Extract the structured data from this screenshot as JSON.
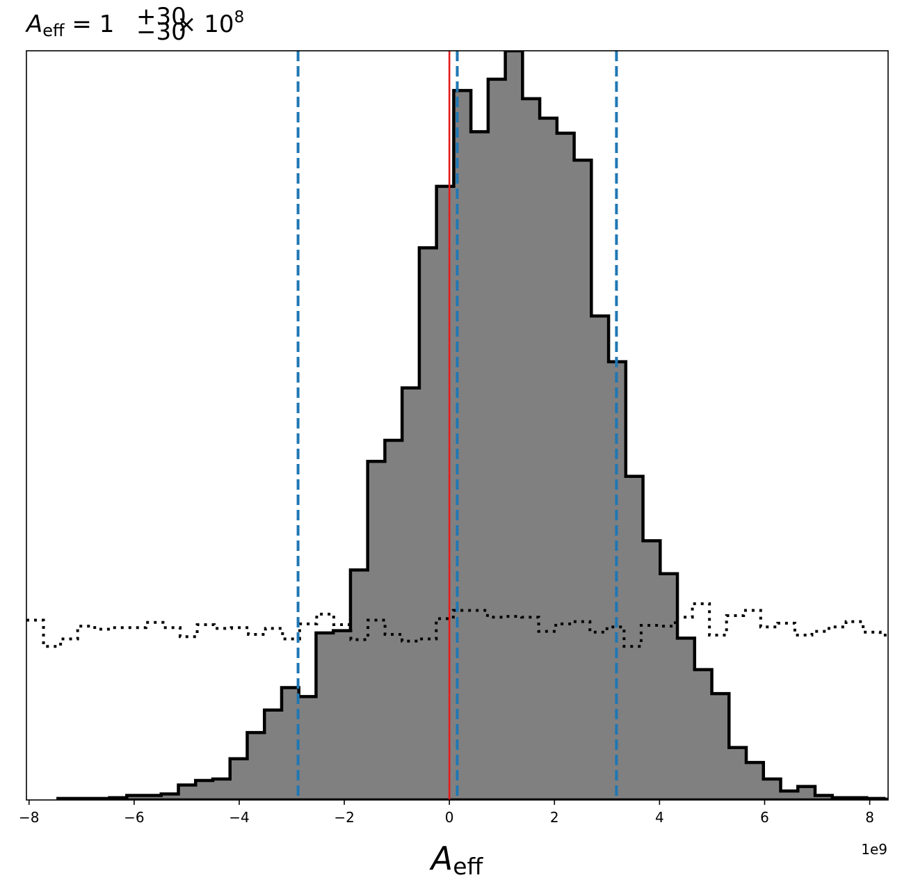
{
  "chart_data": {
    "type": "histogram",
    "title": {
      "symbol": "A",
      "symbol_sub": "eff",
      "equals": " = ",
      "value": "1",
      "upper": "+30",
      "lower": "−30",
      "times": " × 10",
      "exponent": "8"
    },
    "xlabel": {
      "symbol": "A",
      "sub": "eff"
    },
    "x_offset_label": "1e9",
    "x_scale": 1000000000,
    "xlim": [
      -8.05,
      8.35
    ],
    "ylim": [
      0,
      1.0
    ],
    "y_ticks_shown": false,
    "grid": false,
    "x_ticks": [
      {
        "value": -8,
        "label": "−8"
      },
      {
        "value": -6,
        "label": "−6"
      },
      {
        "value": -4,
        "label": "−4"
      },
      {
        "value": -2,
        "label": "−2"
      },
      {
        "value": 0,
        "label": "0"
      },
      {
        "value": 2,
        "label": "2"
      },
      {
        "value": 4,
        "label": "4"
      },
      {
        "value": 6,
        "label": "6"
      },
      {
        "value": 8,
        "label": "8"
      }
    ],
    "posterior": {
      "bin_start": -7.45,
      "bin_width": 0.3275,
      "heights": [
        0.002,
        0.002,
        0.002,
        0.003,
        0.006,
        0.006,
        0.008,
        0.02,
        0.026,
        0.028,
        0.055,
        0.09,
        0.12,
        0.15,
        0.138,
        0.223,
        0.226,
        0.307,
        0.452,
        0.48,
        0.55,
        0.737,
        0.819,
        0.947,
        0.892,
        0.962,
        1.0,
        0.936,
        0.91,
        0.89,
        0.854,
        0.646,
        0.585,
        0.432,
        0.346,
        0.302,
        0.216,
        0.174,
        0.142,
        0.07,
        0.05,
        0.028,
        0.012,
        0.018,
        0.006,
        0.003,
        0.003,
        0.002,
        0.001,
        0.002,
        0.001
      ],
      "fill_color": "#808080",
      "edge_color": "#000000"
    },
    "prior": {
      "bin_start": -8.05,
      "bin_width": 0.325,
      "heights": [
        0.24,
        0.205,
        0.215,
        0.232,
        0.228,
        0.23,
        0.23,
        0.237,
        0.23,
        0.218,
        0.234,
        0.229,
        0.23,
        0.221,
        0.229,
        0.215,
        0.235,
        0.248,
        0.234,
        0.214,
        0.24,
        0.221,
        0.212,
        0.215,
        0.242,
        0.253,
        0.253,
        0.244,
        0.245,
        0.244,
        0.225,
        0.235,
        0.238,
        0.224,
        0.231,
        0.205,
        0.233,
        0.232,
        0.244,
        0.262,
        0.22,
        0.246,
        0.253,
        0.231,
        0.236,
        0.22,
        0.225,
        0.231,
        0.238,
        0.224,
        0.22
      ],
      "line_color": "#000000",
      "line_style": "dotted"
    },
    "vlines": [
      {
        "name": "lower-bound",
        "x": -2.88,
        "color": "#1f77b4",
        "style": "dashed"
      },
      {
        "name": "median",
        "x": 0.15,
        "color": "#1f77b4",
        "style": "dashed"
      },
      {
        "name": "upper-bound",
        "x": 3.18,
        "color": "#1f77b4",
        "style": "dashed"
      },
      {
        "name": "true-value",
        "x": 0.0,
        "color": "#e31a1c",
        "style": "solid"
      }
    ]
  }
}
